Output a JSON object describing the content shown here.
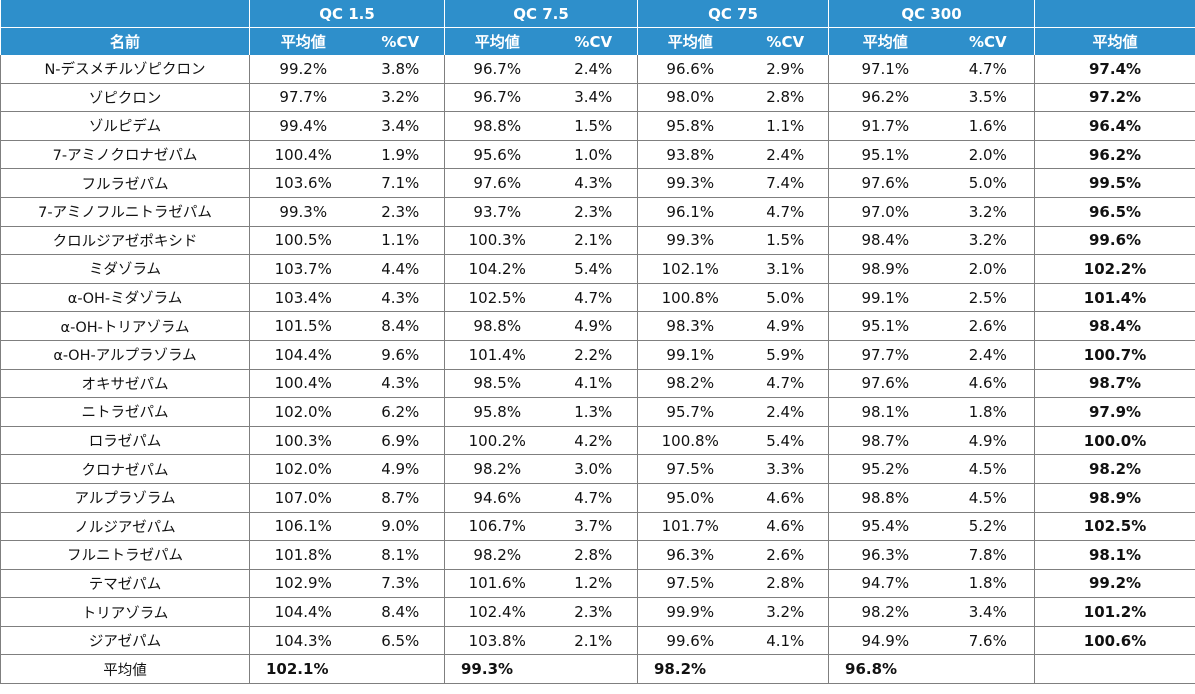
{
  "header": {
    "groups": [
      "QC 1.5",
      "QC 7.5",
      "QC 75",
      "QC 300"
    ],
    "name_col": "名前",
    "mean": "平均値",
    "cv": "%CV",
    "avg": "平均値"
  },
  "rows": [
    {
      "name": "N-デスメチルゾピクロン",
      "vals": [
        "99.2%",
        "3.8%",
        "96.7%",
        "2.4%",
        "96.6%",
        "2.9%",
        "97.1%",
        "4.7%"
      ],
      "avg": "97.4%"
    },
    {
      "name": "ゾピクロン",
      "vals": [
        "97.7%",
        "3.2%",
        "96.7%",
        "3.4%",
        "98.0%",
        "2.8%",
        "96.2%",
        "3.5%"
      ],
      "avg": "97.2%"
    },
    {
      "name": "ゾルピデム",
      "vals": [
        "99.4%",
        "3.4%",
        "98.8%",
        "1.5%",
        "95.8%",
        "1.1%",
        "91.7%",
        "1.6%"
      ],
      "avg": "96.4%"
    },
    {
      "name": "7-アミノクロナゼパム",
      "vals": [
        "100.4%",
        "1.9%",
        "95.6%",
        "1.0%",
        "93.8%",
        "2.4%",
        "95.1%",
        "2.0%"
      ],
      "avg": "96.2%"
    },
    {
      "name": "フルラゼパム",
      "vals": [
        "103.6%",
        "7.1%",
        "97.6%",
        "4.3%",
        "99.3%",
        "7.4%",
        "97.6%",
        "5.0%"
      ],
      "avg": "99.5%"
    },
    {
      "name": "7-アミノフルニトラゼパム",
      "vals": [
        "99.3%",
        "2.3%",
        "93.7%",
        "2.3%",
        "96.1%",
        "4.7%",
        "97.0%",
        "3.2%"
      ],
      "avg": "96.5%"
    },
    {
      "name": "クロルジアゼポキシド",
      "vals": [
        "100.5%",
        "1.1%",
        "100.3%",
        "2.1%",
        "99.3%",
        "1.5%",
        "98.4%",
        "3.2%"
      ],
      "avg": "99.6%"
    },
    {
      "name": "ミダゾラム",
      "vals": [
        "103.7%",
        "4.4%",
        "104.2%",
        "5.4%",
        "102.1%",
        "3.1%",
        "98.9%",
        "2.0%"
      ],
      "avg": "102.2%"
    },
    {
      "name": "α-OH-ミダゾラム",
      "vals": [
        "103.4%",
        "4.3%",
        "102.5%",
        "4.7%",
        "100.8%",
        "5.0%",
        "99.1%",
        "2.5%"
      ],
      "avg": "101.4%"
    },
    {
      "name": "α-OH-トリアゾラム",
      "vals": [
        "101.5%",
        "8.4%",
        "98.8%",
        "4.9%",
        "98.3%",
        "4.9%",
        "95.1%",
        "2.6%"
      ],
      "avg": "98.4%"
    },
    {
      "name": "α-OH-アルプラゾラム",
      "vals": [
        "104.4%",
        "9.6%",
        "101.4%",
        "2.2%",
        "99.1%",
        "5.9%",
        "97.7%",
        "2.4%"
      ],
      "avg": "100.7%"
    },
    {
      "name": "オキサゼパム",
      "vals": [
        "100.4%",
        "4.3%",
        "98.5%",
        "4.1%",
        "98.2%",
        "4.7%",
        "97.6%",
        "4.6%"
      ],
      "avg": "98.7%"
    },
    {
      "name": "ニトラゼパム",
      "vals": [
        "102.0%",
        "6.2%",
        "95.8%",
        "1.3%",
        "95.7%",
        "2.4%",
        "98.1%",
        "1.8%"
      ],
      "avg": "97.9%"
    },
    {
      "name": "ロラゼパム",
      "vals": [
        "100.3%",
        "6.9%",
        "100.2%",
        "4.2%",
        "100.8%",
        "5.4%",
        "98.7%",
        "4.9%"
      ],
      "avg": "100.0%"
    },
    {
      "name": "クロナゼパム",
      "vals": [
        "102.0%",
        "4.9%",
        "98.2%",
        "3.0%",
        "97.5%",
        "3.3%",
        "95.2%",
        "4.5%"
      ],
      "avg": "98.2%"
    },
    {
      "name": "アルプラゾラム",
      "vals": [
        "107.0%",
        "8.7%",
        "94.6%",
        "4.7%",
        "95.0%",
        "4.6%",
        "98.8%",
        "4.5%"
      ],
      "avg": "98.9%"
    },
    {
      "name": "ノルジアゼパム",
      "vals": [
        "106.1%",
        "9.0%",
        "106.7%",
        "3.7%",
        "101.7%",
        "4.6%",
        "95.4%",
        "5.2%"
      ],
      "avg": "102.5%"
    },
    {
      "name": "フルニトラゼパム",
      "vals": [
        "101.8%",
        "8.1%",
        "98.2%",
        "2.8%",
        "96.3%",
        "2.6%",
        "96.3%",
        "7.8%"
      ],
      "avg": "98.1%"
    },
    {
      "name": "テマゼパム",
      "vals": [
        "102.9%",
        "7.3%",
        "101.6%",
        "1.2%",
        "97.5%",
        "2.8%",
        "94.7%",
        "1.8%"
      ],
      "avg": "99.2%"
    },
    {
      "name": "トリアゾラム",
      "vals": [
        "104.4%",
        "8.4%",
        "102.4%",
        "2.3%",
        "99.9%",
        "3.2%",
        "98.2%",
        "3.4%"
      ],
      "avg": "101.2%"
    },
    {
      "name": "ジアゼパム",
      "vals": [
        "104.3%",
        "6.5%",
        "103.8%",
        "2.1%",
        "99.6%",
        "4.1%",
        "94.9%",
        "7.6%"
      ],
      "avg": "100.6%"
    }
  ],
  "total": {
    "name": "平均値",
    "vals": [
      "102.1%",
      "99.3%",
      "98.2%",
      "96.8%"
    ]
  }
}
